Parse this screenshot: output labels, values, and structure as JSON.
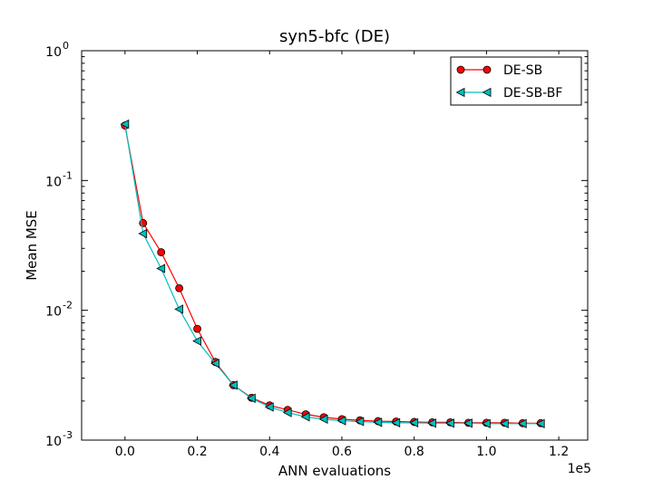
{
  "chart_data": {
    "type": "line",
    "title": "syn5-bfc (DE)",
    "xlabel": "ANN evaluations",
    "ylabel": "Mean MSE",
    "x_multiplier_label": "1e5",
    "xlim": [
      -12000,
      128000
    ],
    "ylim": [
      0.001,
      1
    ],
    "yscale": "log",
    "x_ticks": [
      {
        "value": 0,
        "label": "0.0"
      },
      {
        "value": 20000,
        "label": "0.2"
      },
      {
        "value": 40000,
        "label": "0.4"
      },
      {
        "value": 60000,
        "label": "0.6"
      },
      {
        "value": 80000,
        "label": "0.8"
      },
      {
        "value": 100000,
        "label": "1.0"
      },
      {
        "value": 120000,
        "label": "1.2"
      }
    ],
    "y_ticks": [
      {
        "value": 0.001,
        "base": "10",
        "exp": "-3"
      },
      {
        "value": 0.01,
        "base": "10",
        "exp": "-2"
      },
      {
        "value": 0.1,
        "base": "10",
        "exp": "-1"
      },
      {
        "value": 1,
        "base": "10",
        "exp": "0"
      }
    ],
    "legend_position": "top-right",
    "grid": false,
    "x": [
      0,
      5000,
      10000,
      15000,
      20000,
      25000,
      30000,
      35000,
      40000,
      45000,
      50000,
      55000,
      60000,
      65000,
      70000,
      75000,
      80000,
      85000,
      90000,
      95000,
      100000,
      105000,
      110000,
      115000
    ],
    "series": [
      {
        "name": "DE-SB",
        "color": "#ff0000",
        "marker": "circle",
        "values": [
          0.265,
          0.047,
          0.028,
          0.0148,
          0.0072,
          0.004,
          0.00265,
          0.00212,
          0.00185,
          0.00171,
          0.00158,
          0.0015,
          0.00145,
          0.00142,
          0.0014,
          0.00139,
          0.00138,
          0.00137,
          0.00137,
          0.00136,
          0.00136,
          0.00136,
          0.00135,
          0.00135
        ]
      },
      {
        "name": "DE-SB-BF",
        "color": "#00bfbf",
        "marker": "triangle-left",
        "values": [
          0.272,
          0.039,
          0.021,
          0.0102,
          0.0058,
          0.0039,
          0.00265,
          0.0021,
          0.0018,
          0.00163,
          0.00151,
          0.00145,
          0.00141,
          0.00139,
          0.00137,
          0.00136,
          0.00136,
          0.00135,
          0.00135,
          0.00135,
          0.00134,
          0.00134,
          0.00134,
          0.00134
        ]
      }
    ]
  }
}
